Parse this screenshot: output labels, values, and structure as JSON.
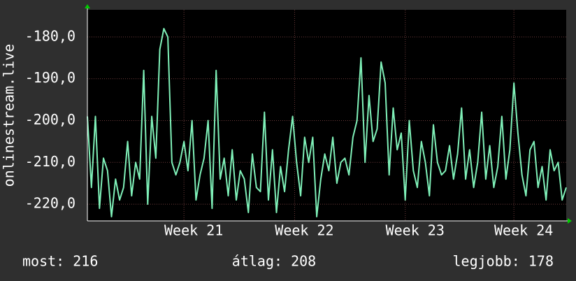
{
  "chart_data": {
    "type": "line",
    "ylabel": "onlinestream.live",
    "color": "#7ff0b8",
    "values": [
      -199,
      -216,
      -199,
      -221,
      -209,
      -212,
      -223,
      -214,
      -219,
      -216,
      -205,
      -218,
      -210,
      -214,
      -188,
      -220,
      -199,
      -209,
      -183,
      -178,
      -180,
      -210,
      -213,
      -210,
      -205,
      -212,
      -200,
      -219,
      -213,
      -209,
      -200,
      -221,
      -188,
      -214,
      -209,
      -218,
      -207,
      -219,
      -212,
      -214,
      -222,
      -208,
      -216,
      -217,
      -198,
      -219,
      -207,
      -222,
      -211,
      -217,
      -207,
      -199,
      -210,
      -218,
      -204,
      -210,
      -204,
      -223,
      -214,
      -208,
      -212,
      -204,
      -215,
      -210,
      -209,
      -213,
      -204,
      -200,
      -185,
      -210,
      -194,
      -205,
      -202,
      -186,
      -191,
      -213,
      -197,
      -207,
      -203,
      -219,
      -200,
      -212,
      -216,
      -205,
      -210,
      -218,
      -201,
      -210,
      -213,
      -212,
      -206,
      -214,
      -208,
      -197,
      -214,
      -207,
      -216,
      -210,
      -198,
      -214,
      -206,
      -216,
      -211,
      -199,
      -214,
      -207,
      -191,
      -203,
      -213,
      -218,
      -207,
      -205,
      -216,
      -211,
      -219,
      -207,
      -212,
      -210,
      -219,
      -216
    ],
    "xlim": [
      0,
      119
    ],
    "xticks": [
      {
        "value": 24,
        "label": "Week  21"
      },
      {
        "value": 51.5,
        "label": "Week  22"
      },
      {
        "value": 79,
        "label": "Week  23"
      },
      {
        "value": 106,
        "label": "Week  24"
      }
    ],
    "ylim": [
      -224,
      -173.5
    ],
    "yticks": [
      {
        "value": -220,
        "label": "-220,0"
      },
      {
        "value": -210,
        "label": "-210,0"
      },
      {
        "value": -200,
        "label": "-200,0"
      },
      {
        "value": -190,
        "label": "-190,0"
      },
      {
        "value": -180,
        "label": "-180,0"
      }
    ],
    "grid": true,
    "legend_texts": [
      "most: 216",
      "átlag: 208",
      "legjobb: 178"
    ]
  }
}
